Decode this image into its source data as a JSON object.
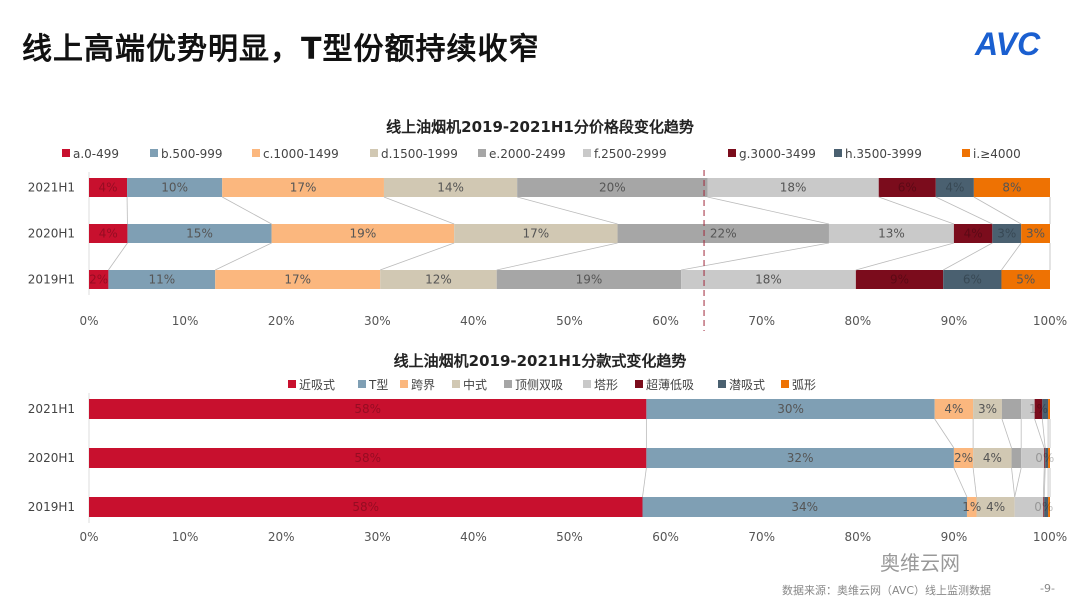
{
  "header": {
    "title": "线上高端优势明显，T型份额持续收窄",
    "logo": "AVC"
  },
  "footer": {
    "source": "数据来源：奥维云网（AVC）线上监测数据",
    "page": "-9-",
    "watermark": "奥维云网"
  },
  "chart_data": [
    {
      "type": "bar",
      "orientation": "horizontal-stacked",
      "title": "线上油烟机2019-2021H1分价格段变化趋势",
      "categories": [
        "2021H1",
        "2020H1",
        "2019H1"
      ],
      "xlim": [
        0,
        100
      ],
      "xticks": [
        "0%",
        "10%",
        "20%",
        "30%",
        "40%",
        "50%",
        "60%",
        "70%",
        "80%",
        "90%",
        "100%"
      ],
      "legend_position": "top",
      "reference_line_x": 64,
      "series": [
        {
          "name": "a.0-499",
          "color": "#c8102e",
          "values": [
            4,
            4,
            2
          ],
          "labels": [
            "4%",
            "4%",
            "2%"
          ]
        },
        {
          "name": "b.500-999",
          "color": "#7f9fb4",
          "values": [
            10,
            15,
            11
          ],
          "labels": [
            "10%",
            "15%",
            "11%"
          ]
        },
        {
          "name": "c.1000-1499",
          "color": "#fbb77e",
          "values": [
            17,
            19,
            17
          ],
          "labels": [
            "17%",
            "19%",
            "17%"
          ]
        },
        {
          "name": "d.1500-1999",
          "color": "#d1c8b3",
          "values": [
            14,
            17,
            12
          ],
          "labels": [
            "14%",
            "17%",
            "12%"
          ]
        },
        {
          "name": "e.2000-2499",
          "color": "#a6a6a6",
          "values": [
            20,
            22,
            19
          ],
          "labels": [
            "20%",
            "22%",
            "19%"
          ]
        },
        {
          "name": "f.2500-2999",
          "color": "#c9c9c9",
          "values": [
            18,
            13,
            18
          ],
          "labels": [
            "18%",
            "13%",
            "18%"
          ]
        },
        {
          "name": "g.3000-3499",
          "color": "#7b0c1c",
          "values": [
            6,
            4,
            9
          ],
          "labels": [
            "6%",
            "4%",
            "9%"
          ]
        },
        {
          "name": "h.3500-3999",
          "color": "#4a6070",
          "values": [
            4,
            3,
            6
          ],
          "labels": [
            "4%",
            "3%",
            "6%"
          ]
        },
        {
          "name": "i.≥4000",
          "color": "#ee7203",
          "values": [
            8,
            3,
            5
          ],
          "labels": [
            "8%",
            "3%",
            "5%"
          ]
        }
      ]
    },
    {
      "type": "bar",
      "orientation": "horizontal-stacked",
      "title": "线上油烟机2019-2021H1分款式变化趋势",
      "categories": [
        "2021H1",
        "2020H1",
        "2019H1"
      ],
      "xlim": [
        0,
        100
      ],
      "xticks": [
        "0%",
        "10%",
        "20%",
        "30%",
        "40%",
        "50%",
        "60%",
        "70%",
        "80%",
        "90%",
        "100%"
      ],
      "legend_position": "top",
      "series": [
        {
          "name": "近吸式",
          "color": "#c8102e",
          "values": [
            58,
            58,
            58
          ],
          "labels": [
            "58%",
            "58%",
            "58%"
          ]
        },
        {
          "name": "T型",
          "color": "#7f9fb4",
          "values": [
            30,
            32,
            34
          ],
          "labels": [
            "30%",
            "32%",
            "34%"
          ]
        },
        {
          "name": "跨界",
          "color": "#fbb77e",
          "values": [
            4,
            2,
            1
          ],
          "labels": [
            "4%",
            "2%",
            "1%"
          ]
        },
        {
          "name": "中式",
          "color": "#d1c8b3",
          "values": [
            3,
            4,
            4
          ],
          "labels": [
            "3%",
            "4%",
            "4%"
          ]
        },
        {
          "name": "顶侧双吸",
          "color": "#a6a6a6",
          "values": [
            2,
            1,
            0
          ],
          "labels": [
            "",
            "",
            ""
          ]
        },
        {
          "name": "塔形",
          "color": "#c9c9c9",
          "values": [
            1.4,
            2.4,
            3
          ],
          "labels": [
            "",
            "",
            ""
          ]
        },
        {
          "name": "超薄低吸",
          "color": "#7b0c1c",
          "values": [
            0.8,
            0.1,
            0.1
          ],
          "labels": [
            "1%",
            "0%",
            "0%"
          ]
        },
        {
          "name": "潜吸式",
          "color": "#4a6070",
          "values": [
            0.6,
            0.3,
            0.4
          ],
          "labels": [
            "",
            "",
            ""
          ]
        },
        {
          "name": "弧形",
          "color": "#ee7203",
          "values": [
            0.2,
            0.2,
            0.2
          ],
          "labels": [
            "",
            "",
            ""
          ]
        }
      ]
    }
  ]
}
